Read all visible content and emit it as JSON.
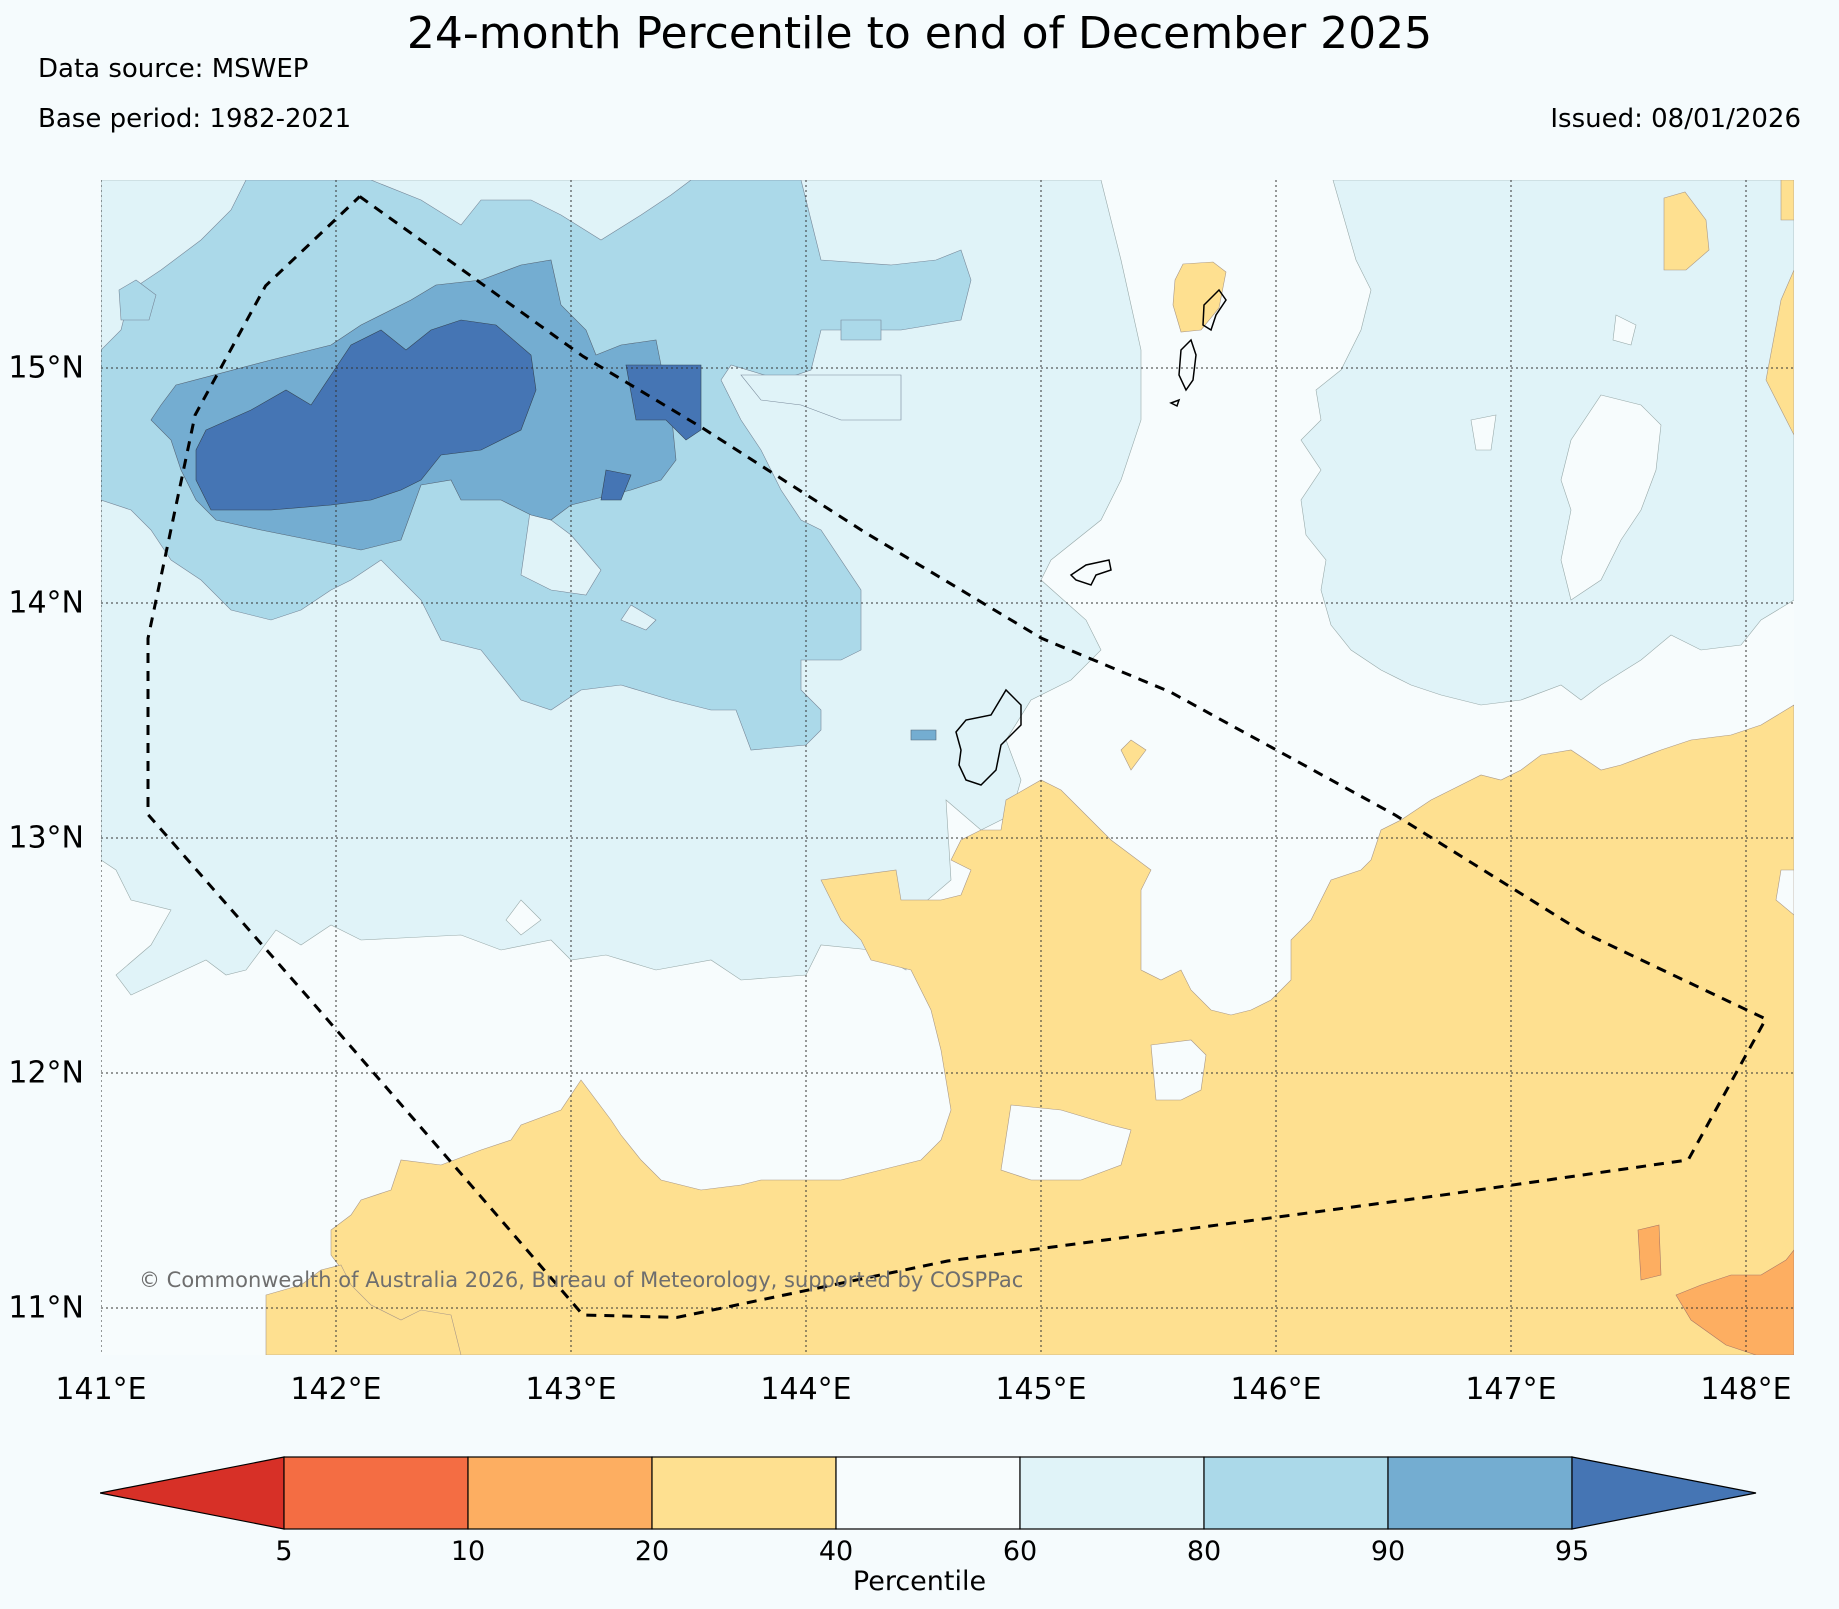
{
  "title": "24-month Percentile to end of December 2025",
  "data_source": "Data source: MSWEP",
  "base_period": "Base period: 1982-2021",
  "issued": "Issued: 08/01/2026",
  "copyright": "© Commonwealth of Australia 2026, Bureau of Meteorology, supported by COSPPac",
  "map": {
    "lon_range": [
      141.0,
      148.2
    ],
    "lat_range": [
      10.8,
      15.8
    ],
    "lat_labels": [
      "15°N",
      "14°N",
      "13°N",
      "12°N",
      "11°N"
    ],
    "lon_labels": [
      "141°E",
      "142°E",
      "143°E",
      "144°E",
      "145°E",
      "146°E",
      "147°E",
      "148°E"
    ],
    "eez_boundary_points": [
      [
        142.1,
        15.73
      ],
      [
        142.52,
        15.43
      ],
      [
        143.05,
        15.05
      ],
      [
        143.55,
        14.75
      ],
      [
        144.25,
        14.3
      ],
      [
        145.0,
        13.85
      ],
      [
        145.55,
        13.62
      ],
      [
        146.5,
        13.1
      ],
      [
        147.3,
        12.6
      ],
      [
        148.08,
        12.23
      ],
      [
        147.75,
        11.63
      ],
      [
        146.7,
        11.48
      ],
      [
        144.6,
        11.2
      ],
      [
        143.45,
        10.96
      ],
      [
        143.05,
        10.97
      ],
      [
        142.55,
        11.55
      ],
      [
        141.9,
        12.3
      ],
      [
        141.2,
        13.1
      ],
      [
        141.2,
        13.85
      ],
      [
        141.4,
        14.8
      ],
      [
        141.7,
        15.35
      ],
      [
        142.1,
        15.73
      ]
    ]
  },
  "colorbar": {
    "label": "Percentile",
    "ticks": [
      "5",
      "10",
      "20",
      "40",
      "60",
      "80",
      "90",
      "95"
    ],
    "colors": {
      "below_5": "#d73027",
      "p5_10": "#f46d43",
      "p10_20": "#fdae61",
      "p20_40": "#fee090",
      "p40_60": "#f7fcfd",
      "p60_80": "#e0f3f8",
      "p80_90": "#abd9e9",
      "p90_95": "#74add1",
      "above_95": "#4575b4"
    }
  }
}
